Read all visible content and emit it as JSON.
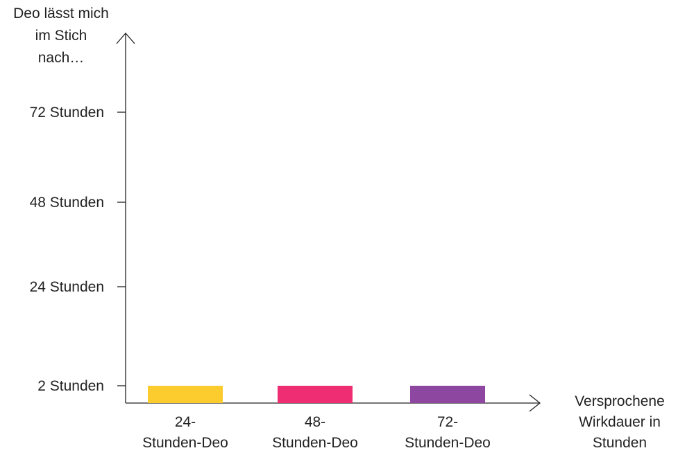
{
  "chart_data": {
    "type": "bar",
    "ylabel": [
      "Deo lässt mich",
      "im Stich",
      "nach…"
    ],
    "xlabel": [
      "Versprochene",
      "Wirkdauer in",
      "Stunden"
    ],
    "categories": [
      [
        "24-",
        "Stunden-Deo"
      ],
      [
        "48-",
        "Stunden-Deo"
      ],
      [
        "72-",
        "Stunden-Deo"
      ]
    ],
    "values": [
      2,
      2,
      2
    ],
    "y_ticks": [
      {
        "value": 2,
        "label": "2 Stunden"
      },
      {
        "value": 24,
        "label": "24 Stunden"
      },
      {
        "value": 48,
        "label": "48 Stunden"
      },
      {
        "value": 72,
        "label": "72 Stunden"
      }
    ],
    "colors": [
      "#fccb2e",
      "#ee2d73",
      "#8d47a0"
    ],
    "grid": false,
    "legend": "none"
  }
}
